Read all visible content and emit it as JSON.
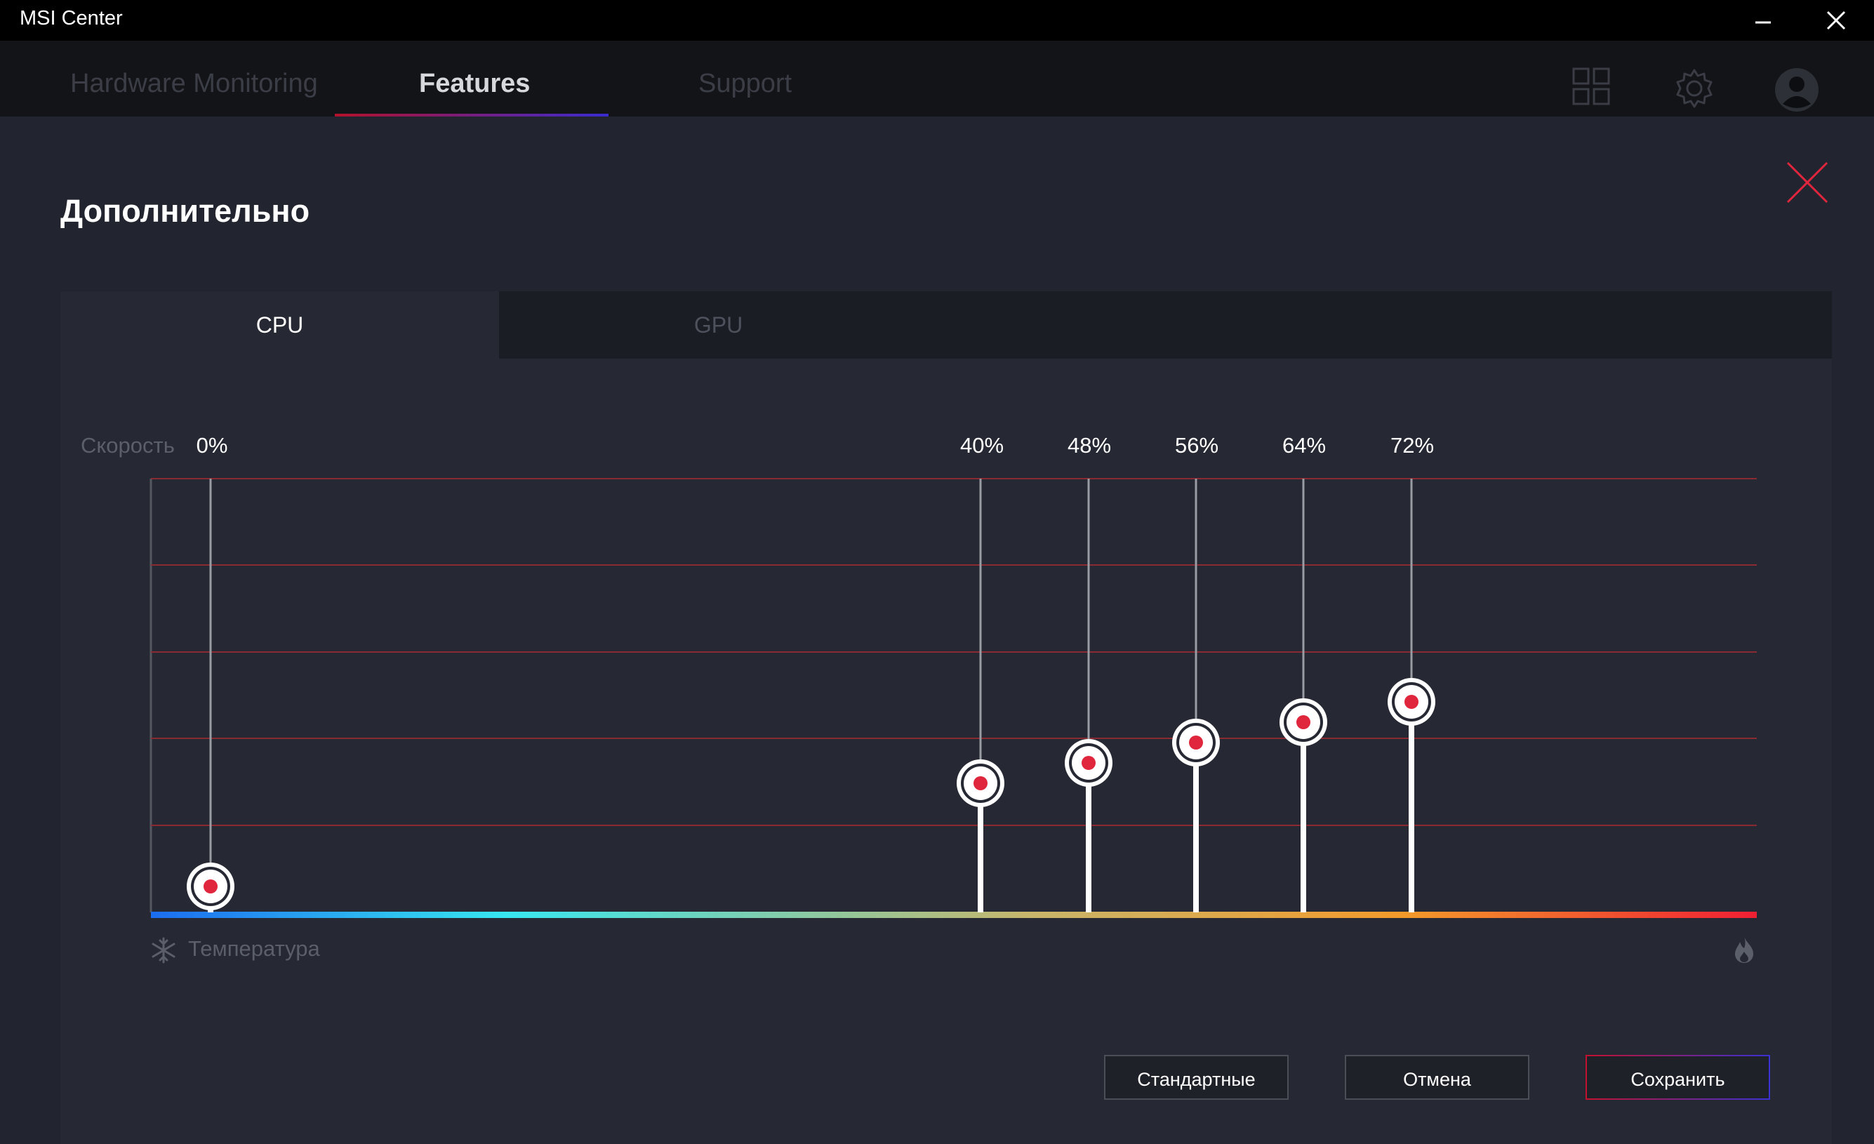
{
  "window": {
    "title": "MSI Center",
    "minimize_glyph": "—",
    "close_glyph": "✕"
  },
  "nav": {
    "tabs": [
      {
        "label": "Hardware Monitoring",
        "active": false
      },
      {
        "label": "Features",
        "active": true
      },
      {
        "label": "Support",
        "active": false
      }
    ],
    "icons": [
      "grid-icon",
      "gear-icon",
      "user-avatar-icon"
    ]
  },
  "page": {
    "title": "Дополнительно",
    "close_icon": "close-x-icon"
  },
  "device_tabs": [
    {
      "label": "CPU",
      "active": true
    },
    {
      "label": "GPU",
      "active": false
    }
  ],
  "fan_curve": {
    "y_label": "Скорость",
    "x_label": "Температура",
    "points": [
      {
        "speed_label": "0%"
      },
      {
        "speed_label": "40%"
      },
      {
        "speed_label": "48%"
      },
      {
        "speed_label": "56%"
      },
      {
        "speed_label": "64%"
      },
      {
        "speed_label": "72%"
      }
    ],
    "cold_icon": "snowflake-icon",
    "hot_icon": "flame-icon"
  },
  "buttons": {
    "default": "Стандартные",
    "cancel": "Отмена",
    "save": "Сохранить"
  },
  "colors": {
    "accent_red": "#e0263d",
    "accent_blue": "#3b31d4",
    "background": "#22252f"
  }
}
